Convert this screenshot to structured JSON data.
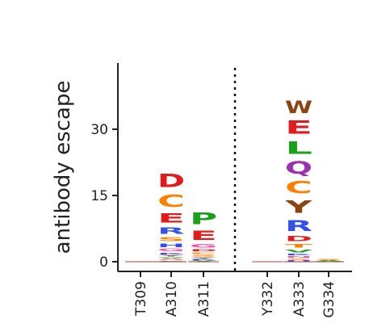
{
  "chart_data": {
    "type": "logo",
    "ylabel": "antibody escape",
    "ylim": [
      -2,
      44
    ],
    "yticks": [
      0,
      15,
      30
    ],
    "ytick_labels": [
      "0",
      "15",
      "30"
    ],
    "grid": false,
    "separator_after_site": "A311",
    "sites": [
      {
        "label": "T309",
        "letters": []
      },
      {
        "label": "A310",
        "letters": [
          {
            "aa": "P",
            "value": 0.25
          },
          {
            "aa": "G",
            "value": 0.35
          },
          {
            "aa": "V",
            "value": 0.45
          },
          {
            "aa": "Y",
            "value": 0.5
          },
          {
            "aa": "K",
            "value": 0.6
          },
          {
            "aa": "G",
            "value": 0.9
          },
          {
            "aa": "H",
            "value": 1.3
          },
          {
            "aa": "S",
            "value": 1.5
          },
          {
            "aa": "R",
            "value": 2.3
          },
          {
            "aa": "E",
            "value": 3.4
          },
          {
            "aa": "C",
            "value": 4.4
          },
          {
            "aa": "D",
            "value": 4.7
          }
        ]
      },
      {
        "label": "A311",
        "letters": [
          {
            "aa": "V",
            "value": 0.3
          },
          {
            "aa": "K",
            "value": 0.35
          },
          {
            "aa": "Y",
            "value": 0.45
          },
          {
            "aa": "S",
            "value": 0.5
          },
          {
            "aa": "C",
            "value": 0.6
          },
          {
            "aa": "D",
            "value": 0.7
          },
          {
            "aa": "G",
            "value": 1.3
          },
          {
            "aa": "E",
            "value": 3.4
          },
          {
            "aa": "P",
            "value": 4.2
          }
        ]
      },
      {
        "label": "Y332",
        "letters": []
      },
      {
        "label": "A333",
        "letters": [
          {
            "aa": "H",
            "value": 0.35
          },
          {
            "aa": "S",
            "value": 0.45
          },
          {
            "aa": "N",
            "value": 0.5
          },
          {
            "aa": "K",
            "value": 0.6
          },
          {
            "aa": "V",
            "value": 1.0
          },
          {
            "aa": "T",
            "value": 1.4
          },
          {
            "aa": "D",
            "value": 1.8
          },
          {
            "aa": "R",
            "value": 4.0
          },
          {
            "aa": "Y",
            "value": 4.5
          },
          {
            "aa": "C",
            "value": 4.4
          },
          {
            "aa": "Q",
            "value": 4.5
          },
          {
            "aa": "L",
            "value": 4.5
          },
          {
            "aa": "E",
            "value": 4.7
          },
          {
            "aa": "W",
            "value": 4.6
          }
        ]
      },
      {
        "label": "G334",
        "letters": [
          {
            "aa": "A",
            "value": 0.3
          },
          {
            "aa": "S",
            "value": 0.3
          }
        ]
      }
    ],
    "colors": {
      "D": "#e31a1c",
      "E": "#e31a1c",
      "C": "#ff7f00",
      "S": "#ff7f00",
      "T": "#ff7f00",
      "R": "#3050f0",
      "K": "#3050f0",
      "H": "#3050f0",
      "G": "#ff4fa0",
      "N": "#ff4fa0",
      "Q": "#9b30b0",
      "P": "#1aa01a",
      "L": "#1aa01a",
      "V": "#1aa01a",
      "A": "#1aa01a",
      "Y": "#8b4513",
      "W": "#8b4513"
    }
  }
}
